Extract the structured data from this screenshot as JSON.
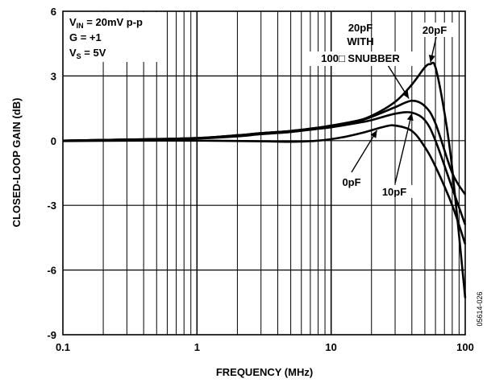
{
  "chart_data": {
    "type": "line",
    "xlabel": "FREQUENCY (MHz)",
    "ylabel": "CLOSED-LOOP GAIN (dB)",
    "x_scale": "log",
    "xlim": [
      0.1,
      100
    ],
    "ylim": [
      -9,
      6
    ],
    "grid": true,
    "x_ticks": [
      "0.1",
      "1",
      "10",
      "100"
    ],
    "y_ticks": [
      "6",
      "3",
      "0",
      "-3",
      "-6",
      "-9"
    ],
    "conditions": {
      "line1_main": "V",
      "line1_sub": "IN",
      "line1_rest": " = 20mV p-p",
      "line2": "G = +1",
      "line3_main": "V",
      "line3_sub": "S",
      "line3_rest": " = 5V"
    },
    "annotations": {
      "c20_with_snubber_1": "20pF",
      "c20_with_snubber_2": "WITH",
      "c20_with_snubber_3": "100□ SNUBBER",
      "c20": "20pF",
      "c0": "0pF",
      "c10": "10pF"
    },
    "figure_id": "05614-026",
    "series": [
      {
        "label_key": "c0",
        "x": [
          0.1,
          0.3,
          1,
          3,
          5,
          8,
          12,
          18,
          25,
          30,
          40,
          50,
          60,
          80,
          100
        ],
        "y": [
          -0.02,
          0.0,
          0.0,
          -0.03,
          -0.05,
          0.0,
          0.15,
          0.4,
          0.65,
          0.7,
          0.45,
          -0.3,
          -1.2,
          -3.0,
          -4.8
        ]
      },
      {
        "label_key": "c10",
        "x": [
          0.1,
          0.3,
          1,
          2,
          3,
          5,
          8,
          10,
          15,
          20,
          30,
          40,
          50,
          60,
          80,
          100
        ],
        "y": [
          0.0,
          0.05,
          0.1,
          0.2,
          0.3,
          0.4,
          0.55,
          0.62,
          0.8,
          0.95,
          1.25,
          1.3,
          0.95,
          0.0,
          -2.2,
          -3.9
        ]
      },
      {
        "label_key": "c20_with_snubber",
        "x": [
          0.1,
          0.3,
          1,
          2,
          3,
          5,
          8,
          10,
          15,
          20,
          30,
          40,
          50,
          60,
          80,
          100
        ],
        "y": [
          0.0,
          0.05,
          0.12,
          0.25,
          0.35,
          0.45,
          0.6,
          0.7,
          0.85,
          1.1,
          1.55,
          1.85,
          1.6,
          0.8,
          -1.5,
          -2.5
        ]
      },
      {
        "label_key": "c20",
        "x": [
          0.1,
          0.3,
          1,
          2,
          3,
          5,
          8,
          10,
          15,
          20,
          30,
          40,
          50,
          55,
          60,
          70,
          80,
          100
        ],
        "y": [
          0.0,
          0.05,
          0.12,
          0.25,
          0.35,
          0.45,
          0.6,
          0.7,
          0.9,
          1.15,
          1.8,
          2.6,
          3.4,
          3.55,
          3.4,
          1.3,
          -1.3,
          -7.3
        ]
      }
    ]
  }
}
